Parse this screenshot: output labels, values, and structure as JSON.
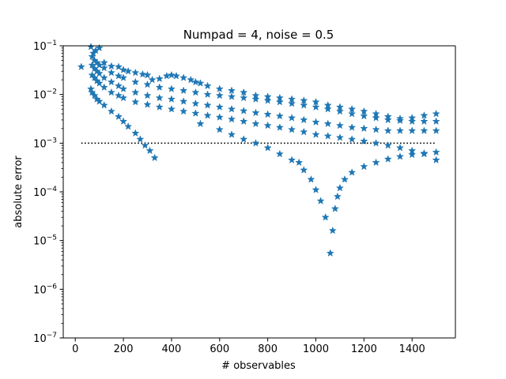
{
  "chart_data": {
    "type": "scatter",
    "title": "Numpad = 4, noise = 0.5",
    "xlabel": "# observables",
    "ylabel": "absolute error",
    "xlim": [
      -50,
      1580
    ],
    "ylim": [
      1e-07,
      0.1
    ],
    "yscale": "log",
    "grid": false,
    "x_ticks": [
      0,
      200,
      400,
      600,
      800,
      1000,
      1200,
      1400
    ],
    "x_tick_labels": [
      "0",
      "200",
      "400",
      "600",
      "800",
      "1000",
      "1200",
      "1400"
    ],
    "y_ticks": [
      1e-07,
      1e-06,
      1e-05,
      0.0001,
      0.001,
      0.01,
      0.1
    ],
    "y_tick_labels": [
      {
        "base": "10",
        "exp": "−7"
      },
      {
        "base": "10",
        "exp": "−6"
      },
      {
        "base": "10",
        "exp": "−5"
      },
      {
        "base": "10",
        "exp": "−4"
      },
      {
        "base": "10",
        "exp": "−3"
      },
      {
        "base": "10",
        "exp": "−2"
      },
      {
        "base": "10",
        "exp": "−1"
      }
    ],
    "marker": "star",
    "marker_color": "#1f77b4",
    "threshold": {
      "y": 0.001,
      "x_range": [
        25,
        1500
      ],
      "style": "dotted",
      "color": "#000000"
    },
    "series": [
      {
        "x": [
          25,
          65,
          75,
          85,
          100,
          120,
          150,
          180,
          200,
          220,
          250,
          280,
          300,
          320,
          350,
          380,
          400,
          420,
          450,
          480,
          500,
          520,
          550,
          600,
          650,
          700,
          750,
          800,
          850,
          900,
          950,
          1000,
          1050,
          1100,
          1150,
          1200,
          1250,
          1300,
          1350,
          1400,
          1450,
          1500
        ],
        "y": [
          0.037,
          0.095,
          0.07,
          0.08,
          0.09,
          0.045,
          0.038,
          0.037,
          0.032,
          0.03,
          0.028,
          0.026,
          0.025,
          0.02,
          0.021,
          0.024,
          0.025,
          0.024,
          0.022,
          0.02,
          0.018,
          0.017,
          0.015,
          0.013,
          0.012,
          0.011,
          0.0095,
          0.009,
          0.0085,
          0.008,
          0.0075,
          0.007,
          0.006,
          0.0055,
          0.005,
          0.0045,
          0.004,
          0.0035,
          0.0032,
          0.0033,
          0.0037,
          0.004
        ]
      },
      {
        "x": [
          70,
          80,
          90,
          100,
          120,
          150,
          180,
          200,
          250,
          300,
          350,
          400,
          450,
          500,
          550,
          600,
          650,
          700,
          750,
          800,
          850,
          900,
          950,
          1000,
          1050,
          1100,
          1150,
          1200,
          1250,
          1300,
          1350,
          1400,
          1450,
          1500
        ],
        "y": [
          0.06,
          0.05,
          0.045,
          0.04,
          0.035,
          0.028,
          0.024,
          0.022,
          0.018,
          0.016,
          0.014,
          0.013,
          0.012,
          0.011,
          0.01,
          0.0095,
          0.009,
          0.0085,
          0.008,
          0.0075,
          0.007,
          0.0065,
          0.006,
          0.0055,
          0.005,
          0.0045,
          0.004,
          0.0036,
          0.0033,
          0.003,
          0.0029,
          0.0028,
          0.0028,
          0.0028
        ]
      },
      {
        "x": [
          70,
          80,
          90,
          100,
          120,
          150,
          180,
          200,
          250,
          300,
          350,
          400,
          450,
          500,
          550,
          600,
          650,
          700,
          750,
          800,
          850,
          900,
          950,
          1000,
          1050,
          1100,
          1150,
          1200,
          1250,
          1300,
          1350,
          1400,
          1450,
          1500
        ],
        "y": [
          0.04,
          0.034,
          0.03,
          0.027,
          0.022,
          0.018,
          0.015,
          0.013,
          0.011,
          0.0095,
          0.0085,
          0.008,
          0.0072,
          0.0065,
          0.006,
          0.0055,
          0.005,
          0.0046,
          0.0042,
          0.0039,
          0.0036,
          0.0033,
          0.003,
          0.0027,
          0.0025,
          0.0023,
          0.0021,
          0.002,
          0.0019,
          0.0018,
          0.0018,
          0.0018,
          0.0018,
          0.0018
        ]
      },
      {
        "x": [
          70,
          80,
          90,
          100,
          120,
          150,
          180,
          200,
          250,
          300,
          350,
          400,
          450,
          500,
          550,
          600,
          650,
          700,
          750,
          800,
          850,
          900,
          950,
          1000,
          1050,
          1100,
          1150,
          1200,
          1250,
          1300,
          1350,
          1400,
          1450,
          1500
        ],
        "y": [
          0.025,
          0.022,
          0.019,
          0.017,
          0.014,
          0.011,
          0.0095,
          0.0085,
          0.007,
          0.0062,
          0.0055,
          0.005,
          0.0045,
          0.0041,
          0.0037,
          0.0034,
          0.0031,
          0.0028,
          0.0025,
          0.0023,
          0.0021,
          0.0019,
          0.0017,
          0.0015,
          0.0014,
          0.0013,
          0.0012,
          0.0011,
          0.001,
          0.0009,
          0.0008,
          0.0007,
          0.0006,
          0.00045
        ]
      },
      {
        "x": [
          65,
          70,
          80,
          90,
          100,
          120,
          150,
          180,
          200,
          220,
          250,
          270,
          290,
          310,
          330
        ],
        "y": [
          0.013,
          0.011,
          0.0095,
          0.008,
          0.0072,
          0.006,
          0.0045,
          0.0035,
          0.0028,
          0.0022,
          0.0016,
          0.0012,
          0.0009,
          0.0007,
          0.0005
        ]
      },
      {
        "x": [
          520,
          600,
          650,
          700,
          750,
          800,
          850,
          900,
          930,
          950,
          980,
          1000,
          1020,
          1040,
          1060,
          1070,
          1080,
          1090,
          1100,
          1120,
          1150,
          1200,
          1250,
          1300,
          1350,
          1400,
          1450,
          1500
        ],
        "y": [
          0.0025,
          0.0019,
          0.0015,
          0.0012,
          0.001,
          0.0008,
          0.0006,
          0.00045,
          0.0004,
          0.00028,
          0.00018,
          0.00011,
          6.5e-05,
          3e-05,
          5.5e-06,
          1.6e-05,
          4.5e-05,
          8e-05,
          0.00012,
          0.00018,
          0.00025,
          0.00033,
          0.0004,
          0.00047,
          0.00053,
          0.00058,
          0.00062,
          0.00065
        ]
      }
    ]
  }
}
